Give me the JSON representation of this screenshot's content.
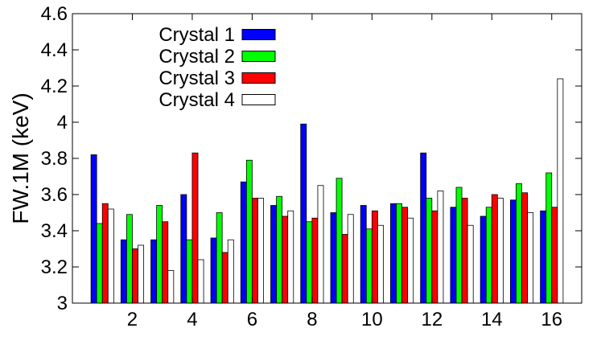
{
  "chart_data": {
    "type": "bar",
    "title": "",
    "xlabel": "",
    "ylabel": "FW.1M (keV)",
    "ylim": [
      3,
      4.6
    ],
    "yticks": [
      "3",
      "3.2",
      "3.4",
      "3.6",
      "3.8",
      "4",
      "4.2",
      "4.4",
      "4.6"
    ],
    "xlim": [
      0,
      17
    ],
    "xticks": [
      "2",
      "4",
      "6",
      "8",
      "10",
      "12",
      "14",
      "16"
    ],
    "grid": false,
    "legend_position": "top-left",
    "categories": [
      1,
      2,
      3,
      4,
      5,
      6,
      7,
      8,
      9,
      10,
      11,
      12,
      13,
      14,
      15,
      16
    ],
    "series": [
      {
        "name": "Crystal 1",
        "color": "#0000ff",
        "values": [
          3.82,
          3.35,
          3.35,
          3.6,
          3.36,
          3.67,
          3.54,
          3.99,
          3.5,
          3.54,
          3.55,
          3.83,
          3.53,
          3.48,
          3.57,
          3.51
        ]
      },
      {
        "name": "Crystal 2",
        "color": "#00ff00",
        "values": [
          3.44,
          3.49,
          3.54,
          3.35,
          3.5,
          3.79,
          3.59,
          3.45,
          3.69,
          3.41,
          3.55,
          3.58,
          3.64,
          3.53,
          3.66,
          3.72
        ]
      },
      {
        "name": "Crystal 3",
        "color": "#ff0000",
        "values": [
          3.55,
          3.3,
          3.45,
          3.83,
          3.28,
          3.58,
          3.48,
          3.47,
          3.38,
          3.51,
          3.53,
          3.51,
          3.58,
          3.6,
          3.61,
          3.53
        ]
      },
      {
        "name": "Crystal 4",
        "color": "#ffffff",
        "values": [
          3.52,
          3.32,
          3.18,
          3.24,
          3.35,
          3.58,
          3.51,
          3.65,
          3.49,
          3.43,
          3.47,
          3.62,
          3.43,
          3.58,
          3.5,
          4.24
        ]
      }
    ]
  }
}
